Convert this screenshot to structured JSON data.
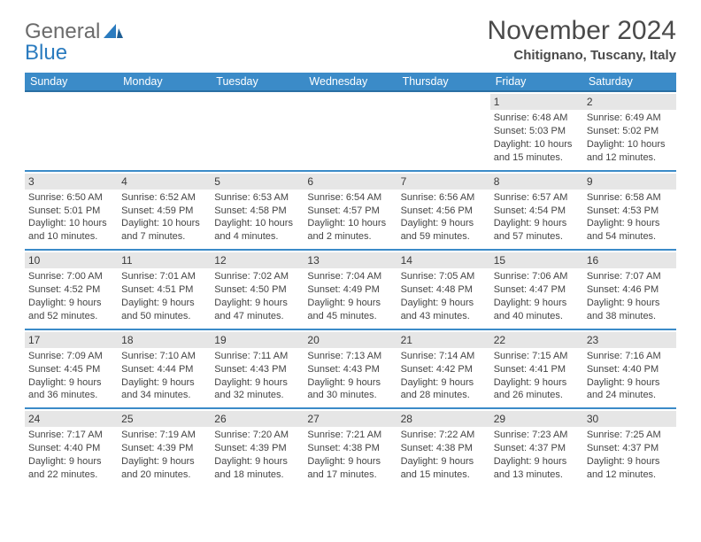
{
  "logo": {
    "word1": "General",
    "word2": "Blue"
  },
  "title": "November 2024",
  "location": "Chitignano, Tuscany, Italy",
  "colors": {
    "header_bg": "#3b8bc8",
    "header_border": "#2a6fa3",
    "daynum_bg": "#e6e6e6",
    "text": "#444444",
    "logo_gray": "#6b6b6b",
    "logo_blue": "#2a7bbf"
  },
  "day_names": [
    "Sunday",
    "Monday",
    "Tuesday",
    "Wednesday",
    "Thursday",
    "Friday",
    "Saturday"
  ],
  "weeks": [
    [
      null,
      null,
      null,
      null,
      null,
      {
        "n": "1",
        "sunrise": "Sunrise: 6:48 AM",
        "sunset": "Sunset: 5:03 PM",
        "day1": "Daylight: 10 hours",
        "day2": "and 15 minutes."
      },
      {
        "n": "2",
        "sunrise": "Sunrise: 6:49 AM",
        "sunset": "Sunset: 5:02 PM",
        "day1": "Daylight: 10 hours",
        "day2": "and 12 minutes."
      }
    ],
    [
      {
        "n": "3",
        "sunrise": "Sunrise: 6:50 AM",
        "sunset": "Sunset: 5:01 PM",
        "day1": "Daylight: 10 hours",
        "day2": "and 10 minutes."
      },
      {
        "n": "4",
        "sunrise": "Sunrise: 6:52 AM",
        "sunset": "Sunset: 4:59 PM",
        "day1": "Daylight: 10 hours",
        "day2": "and 7 minutes."
      },
      {
        "n": "5",
        "sunrise": "Sunrise: 6:53 AM",
        "sunset": "Sunset: 4:58 PM",
        "day1": "Daylight: 10 hours",
        "day2": "and 4 minutes."
      },
      {
        "n": "6",
        "sunrise": "Sunrise: 6:54 AM",
        "sunset": "Sunset: 4:57 PM",
        "day1": "Daylight: 10 hours",
        "day2": "and 2 minutes."
      },
      {
        "n": "7",
        "sunrise": "Sunrise: 6:56 AM",
        "sunset": "Sunset: 4:56 PM",
        "day1": "Daylight: 9 hours",
        "day2": "and 59 minutes."
      },
      {
        "n": "8",
        "sunrise": "Sunrise: 6:57 AM",
        "sunset": "Sunset: 4:54 PM",
        "day1": "Daylight: 9 hours",
        "day2": "and 57 minutes."
      },
      {
        "n": "9",
        "sunrise": "Sunrise: 6:58 AM",
        "sunset": "Sunset: 4:53 PM",
        "day1": "Daylight: 9 hours",
        "day2": "and 54 minutes."
      }
    ],
    [
      {
        "n": "10",
        "sunrise": "Sunrise: 7:00 AM",
        "sunset": "Sunset: 4:52 PM",
        "day1": "Daylight: 9 hours",
        "day2": "and 52 minutes."
      },
      {
        "n": "11",
        "sunrise": "Sunrise: 7:01 AM",
        "sunset": "Sunset: 4:51 PM",
        "day1": "Daylight: 9 hours",
        "day2": "and 50 minutes."
      },
      {
        "n": "12",
        "sunrise": "Sunrise: 7:02 AM",
        "sunset": "Sunset: 4:50 PM",
        "day1": "Daylight: 9 hours",
        "day2": "and 47 minutes."
      },
      {
        "n": "13",
        "sunrise": "Sunrise: 7:04 AM",
        "sunset": "Sunset: 4:49 PM",
        "day1": "Daylight: 9 hours",
        "day2": "and 45 minutes."
      },
      {
        "n": "14",
        "sunrise": "Sunrise: 7:05 AM",
        "sunset": "Sunset: 4:48 PM",
        "day1": "Daylight: 9 hours",
        "day2": "and 43 minutes."
      },
      {
        "n": "15",
        "sunrise": "Sunrise: 7:06 AM",
        "sunset": "Sunset: 4:47 PM",
        "day1": "Daylight: 9 hours",
        "day2": "and 40 minutes."
      },
      {
        "n": "16",
        "sunrise": "Sunrise: 7:07 AM",
        "sunset": "Sunset: 4:46 PM",
        "day1": "Daylight: 9 hours",
        "day2": "and 38 minutes."
      }
    ],
    [
      {
        "n": "17",
        "sunrise": "Sunrise: 7:09 AM",
        "sunset": "Sunset: 4:45 PM",
        "day1": "Daylight: 9 hours",
        "day2": "and 36 minutes."
      },
      {
        "n": "18",
        "sunrise": "Sunrise: 7:10 AM",
        "sunset": "Sunset: 4:44 PM",
        "day1": "Daylight: 9 hours",
        "day2": "and 34 minutes."
      },
      {
        "n": "19",
        "sunrise": "Sunrise: 7:11 AM",
        "sunset": "Sunset: 4:43 PM",
        "day1": "Daylight: 9 hours",
        "day2": "and 32 minutes."
      },
      {
        "n": "20",
        "sunrise": "Sunrise: 7:13 AM",
        "sunset": "Sunset: 4:43 PM",
        "day1": "Daylight: 9 hours",
        "day2": "and 30 minutes."
      },
      {
        "n": "21",
        "sunrise": "Sunrise: 7:14 AM",
        "sunset": "Sunset: 4:42 PM",
        "day1": "Daylight: 9 hours",
        "day2": "and 28 minutes."
      },
      {
        "n": "22",
        "sunrise": "Sunrise: 7:15 AM",
        "sunset": "Sunset: 4:41 PM",
        "day1": "Daylight: 9 hours",
        "day2": "and 26 minutes."
      },
      {
        "n": "23",
        "sunrise": "Sunrise: 7:16 AM",
        "sunset": "Sunset: 4:40 PM",
        "day1": "Daylight: 9 hours",
        "day2": "and 24 minutes."
      }
    ],
    [
      {
        "n": "24",
        "sunrise": "Sunrise: 7:17 AM",
        "sunset": "Sunset: 4:40 PM",
        "day1": "Daylight: 9 hours",
        "day2": "and 22 minutes."
      },
      {
        "n": "25",
        "sunrise": "Sunrise: 7:19 AM",
        "sunset": "Sunset: 4:39 PM",
        "day1": "Daylight: 9 hours",
        "day2": "and 20 minutes."
      },
      {
        "n": "26",
        "sunrise": "Sunrise: 7:20 AM",
        "sunset": "Sunset: 4:39 PM",
        "day1": "Daylight: 9 hours",
        "day2": "and 18 minutes."
      },
      {
        "n": "27",
        "sunrise": "Sunrise: 7:21 AM",
        "sunset": "Sunset: 4:38 PM",
        "day1": "Daylight: 9 hours",
        "day2": "and 17 minutes."
      },
      {
        "n": "28",
        "sunrise": "Sunrise: 7:22 AM",
        "sunset": "Sunset: 4:38 PM",
        "day1": "Daylight: 9 hours",
        "day2": "and 15 minutes."
      },
      {
        "n": "29",
        "sunrise": "Sunrise: 7:23 AM",
        "sunset": "Sunset: 4:37 PM",
        "day1": "Daylight: 9 hours",
        "day2": "and 13 minutes."
      },
      {
        "n": "30",
        "sunrise": "Sunrise: 7:25 AM",
        "sunset": "Sunset: 4:37 PM",
        "day1": "Daylight: 9 hours",
        "day2": "and 12 minutes."
      }
    ]
  ]
}
